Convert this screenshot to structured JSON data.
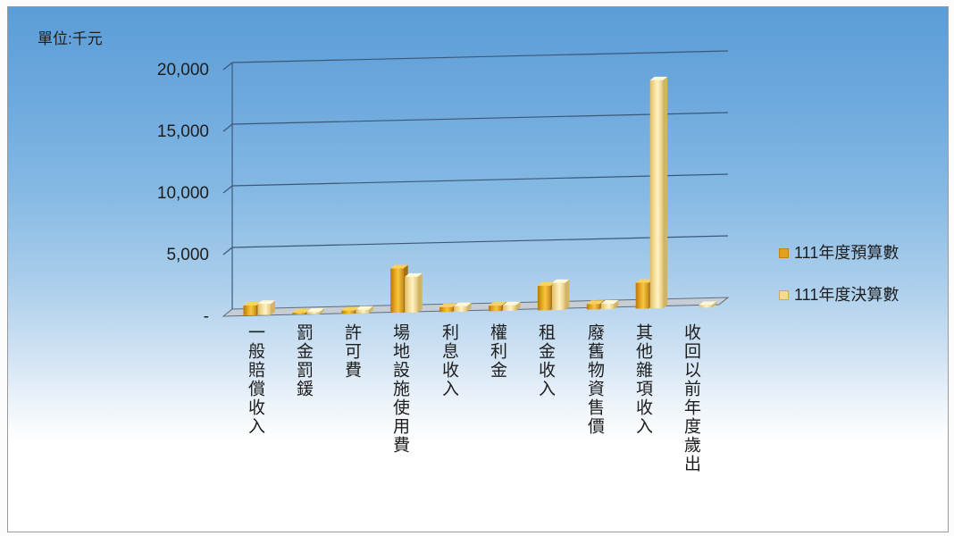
{
  "chart_data": {
    "type": "bar",
    "unit_label": "單位:千元",
    "categories": [
      "一般賠償收入",
      "罰金罰鍰",
      "許可費",
      "場地設施使用費",
      "利息收入",
      "權利金",
      "租金收入",
      "廢舊物資售價",
      "其他雜項收入",
      "收回以前年度歲出"
    ],
    "series": [
      {
        "name": "111年度預算數",
        "color": "#e3a01c",
        "values": [
          800,
          150,
          250,
          3600,
          400,
          450,
          2000,
          450,
          2100,
          0
        ]
      },
      {
        "name": "111年度決算數",
        "color": "#f4dc8f",
        "values": [
          900,
          200,
          300,
          2900,
          450,
          450,
          2200,
          450,
          18500,
          200
        ]
      }
    ],
    "ylim": [
      0,
      20000
    ],
    "yticks": [
      0,
      5000,
      10000,
      15000,
      20000
    ],
    "ytick_labels": [
      "-",
      "5,000",
      "10,000",
      "15,000",
      "20,000"
    ],
    "grid": true,
    "legend_position": "right"
  }
}
